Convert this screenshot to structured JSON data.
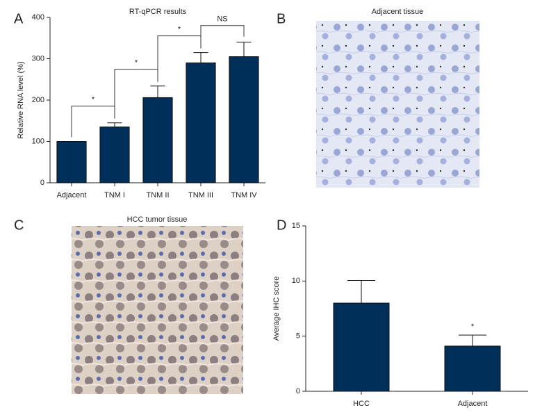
{
  "chart_data": [
    {
      "type": "bar",
      "panel_label": "A",
      "title": "RT-qPCR results",
      "y_label": "Relative RNA level (%)",
      "categories": [
        "Adjacent",
        "TNM I",
        "TNM II",
        "TNM III",
        "TNM IV"
      ],
      "values": [
        100,
        135,
        206,
        290,
        305
      ],
      "errors": [
        0,
        10,
        28,
        25,
        35
      ],
      "significance": [
        "*",
        "*",
        "*",
        "NS"
      ],
      "color": "#00305a",
      "ylim": [
        0,
        400
      ],
      "yticks": [
        0,
        100,
        200,
        300,
        400
      ]
    },
    {
      "type": "bar",
      "panel_label": "D",
      "y_label": "Average IHC score",
      "categories": [
        "HCC",
        "Adjacent"
      ],
      "values": [
        8,
        4.1
      ],
      "errors": [
        2.05,
        1.0
      ],
      "annotation": "*",
      "color": "#00305a",
      "ylim": [
        0,
        15
      ],
      "yticks": [
        0,
        5,
        10,
        15
      ]
    }
  ],
  "images": [
    {
      "panel_label": "B",
      "title": "Adjacent tissue"
    },
    {
      "panel_label": "C",
      "title": "HCC tumor tissue"
    }
  ]
}
